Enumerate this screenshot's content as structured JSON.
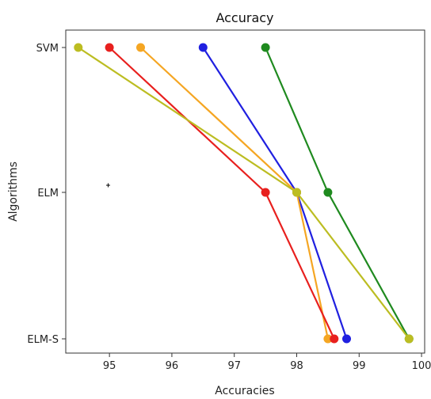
{
  "chart_data": {
    "type": "line",
    "title": "Accuracy",
    "xlabel": "Accuracies",
    "ylabel": "Algorithms",
    "categories": [
      "SVM",
      "ELM",
      "ELM-S"
    ],
    "xlim": [
      94.3,
      100.05
    ],
    "xticks": [
      "95",
      "96",
      "97",
      "98",
      "99",
      "100"
    ],
    "grid": false,
    "series": [
      {
        "color": "#1f8a1f",
        "values": [
          97.5,
          98.5,
          99.8
        ]
      },
      {
        "color": "#2020e0",
        "values": [
          96.5,
          98.0,
          98.8
        ]
      },
      {
        "color": "#f5a623",
        "values": [
          95.5,
          98.0,
          98.5
        ]
      },
      {
        "color": "#e8201e",
        "values": [
          95.0,
          97.5,
          98.6
        ]
      },
      {
        "color": "#bcbd22",
        "values": [
          94.5,
          98.0,
          99.8
        ]
      }
    ]
  }
}
